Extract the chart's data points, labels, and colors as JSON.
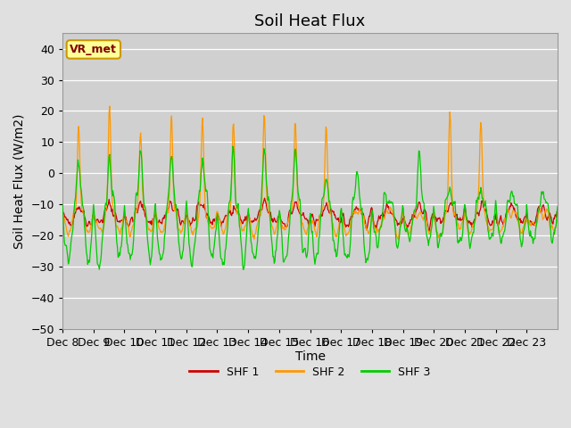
{
  "title": "Soil Heat Flux",
  "xlabel": "Time",
  "ylabel": "Soil Heat Flux (W/m2)",
  "ylim": [
    -50,
    45
  ],
  "yticks": [
    -50,
    -40,
    -30,
    -20,
    -10,
    0,
    10,
    20,
    30,
    40
  ],
  "colors": {
    "SHF 1": "#cc0000",
    "SHF 2": "#ff9900",
    "SHF 3": "#00cc00"
  },
  "background_color": "#e0e0e0",
  "plot_bg_color": "#d0d0d0",
  "legend_label": "VR_met",
  "legend_box_facecolor": "#ffff99",
  "legend_box_edgecolor": "#cc9900",
  "n_days": 16,
  "xtick_labels": [
    "Dec 8",
    "Dec 9",
    "Dec 10",
    "Dec 11",
    "Dec 12",
    "Dec 13",
    "Dec 14",
    "Dec 15",
    "Dec 16",
    "Dec 17",
    "Dec 18",
    "Dec 19",
    "Dec 20",
    "Dec 21",
    "Dec 22",
    "Dec 23"
  ],
  "title_fontsize": 13,
  "axis_label_fontsize": 10,
  "tick_fontsize": 9
}
